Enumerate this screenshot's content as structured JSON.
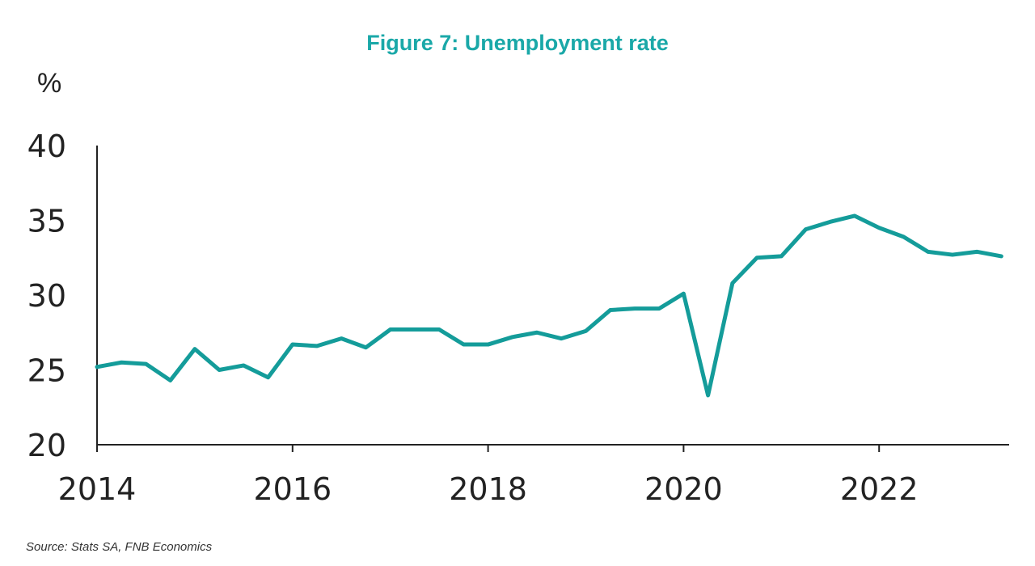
{
  "chart_data": {
    "type": "line",
    "title": "Figure 7: Unemployment rate",
    "ylabel": "%",
    "xlabel": "",
    "source": "Source: Stats SA, FNB Economics",
    "ylim": [
      20,
      40
    ],
    "xlim": [
      2014,
      2023.33
    ],
    "y_ticks": [
      "20",
      "25",
      "30",
      "35",
      "40"
    ],
    "x_ticks": [
      "2014",
      "2016",
      "2018",
      "2020",
      "2022"
    ],
    "grid": false,
    "color": "#149c9a",
    "series": [
      {
        "name": "Unemployment rate",
        "frequency": "quarterly, starting 2014 Q1",
        "values": [
          25.2,
          25.5,
          25.4,
          24.3,
          26.4,
          25.0,
          25.3,
          24.5,
          26.7,
          26.6,
          27.1,
          26.5,
          27.7,
          27.7,
          27.7,
          26.7,
          26.7,
          27.2,
          27.5,
          27.1,
          27.6,
          29.0,
          29.1,
          29.1,
          30.1,
          23.3,
          30.8,
          32.5,
          32.6,
          34.4,
          34.9,
          35.3,
          34.5,
          33.9,
          32.9,
          32.7,
          32.9,
          32.6
        ]
      }
    ]
  }
}
